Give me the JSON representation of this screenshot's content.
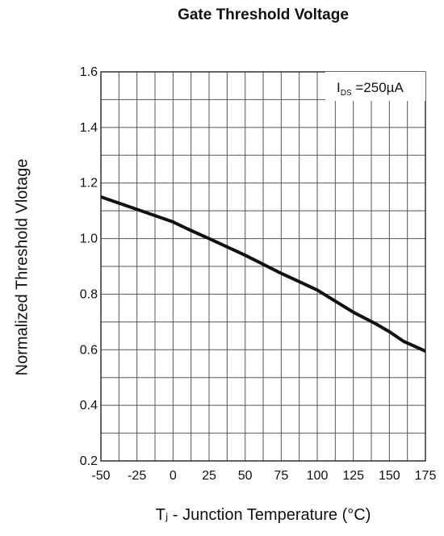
{
  "chart_data": {
    "type": "line",
    "title": "Gate Threshold Voltage",
    "xlabel": "Tⱼ - Junction Temperature (°C)",
    "ylabel": "Normalized Threshold Vlotage",
    "xlim": [
      -50,
      175
    ],
    "ylim": [
      0.2,
      1.6
    ],
    "x_ticks": [
      "-50",
      "-25",
      "0",
      "25",
      "50",
      "75",
      "100",
      "125",
      "150",
      "175"
    ],
    "y_ticks": [
      "0.2",
      "0.4",
      "0.6",
      "0.8",
      "1.0",
      "1.2",
      "1.4",
      "1.6"
    ],
    "grid": true,
    "annotation": {
      "main": "I",
      "sub": "DS",
      "rest": " =250µA"
    },
    "series": [
      {
        "x": [
          -50,
          -25,
          0,
          10,
          25,
          50,
          75,
          100,
          125,
          140,
          150,
          160,
          175
        ],
        "values": [
          1.15,
          1.105,
          1.06,
          1.035,
          1.0,
          0.94,
          0.875,
          0.815,
          0.735,
          0.695,
          0.665,
          0.63,
          0.595
        ]
      }
    ],
    "colors": {
      "line": "#111111",
      "grid": "#555555"
    }
  }
}
